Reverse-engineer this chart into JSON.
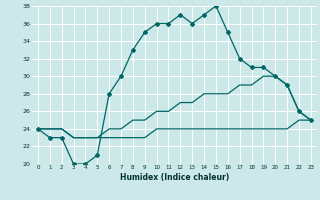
{
  "xlabel": "Humidex (Indice chaleur)",
  "bg_color": "#cce8e8",
  "grid_color": "#aad4d4",
  "line_color": "#006666",
  "xlim": [
    -0.5,
    23.5
  ],
  "ylim": [
    20,
    38
  ],
  "xticks": [
    0,
    1,
    2,
    3,
    4,
    5,
    6,
    7,
    8,
    9,
    10,
    11,
    12,
    13,
    14,
    15,
    16,
    17,
    18,
    19,
    20,
    21,
    22,
    23
  ],
  "yticks": [
    20,
    22,
    24,
    26,
    28,
    30,
    32,
    34,
    36,
    38
  ],
  "line1_x": [
    0,
    1,
    2,
    3,
    4,
    5,
    6,
    7,
    8,
    9,
    10,
    11,
    12,
    13,
    14,
    15,
    16,
    17,
    18,
    19,
    20,
    21,
    22,
    23
  ],
  "line1_y": [
    24,
    23,
    23,
    20,
    20,
    21,
    28,
    30,
    33,
    35,
    36,
    36,
    37,
    36,
    37,
    38,
    35,
    32,
    31,
    31,
    30,
    29,
    26,
    25
  ],
  "line2_x": [
    0,
    1,
    2,
    3,
    4,
    5,
    6,
    7,
    8,
    9,
    10,
    11,
    12,
    13,
    14,
    15,
    16,
    17,
    18,
    19,
    20,
    21,
    22,
    23
  ],
  "line2_y": [
    24,
    24,
    24,
    23,
    23,
    23,
    24,
    24,
    25,
    25,
    26,
    26,
    27,
    27,
    28,
    28,
    28,
    29,
    29,
    30,
    30,
    29,
    26,
    25
  ],
  "line3_x": [
    0,
    1,
    2,
    3,
    4,
    5,
    6,
    7,
    8,
    9,
    10,
    11,
    12,
    13,
    14,
    15,
    16,
    17,
    18,
    19,
    20,
    21,
    22,
    23
  ],
  "line3_y": [
    24,
    24,
    24,
    23,
    23,
    23,
    23,
    23,
    23,
    23,
    24,
    24,
    24,
    24,
    24,
    24,
    24,
    24,
    24,
    24,
    24,
    24,
    25,
    25
  ]
}
